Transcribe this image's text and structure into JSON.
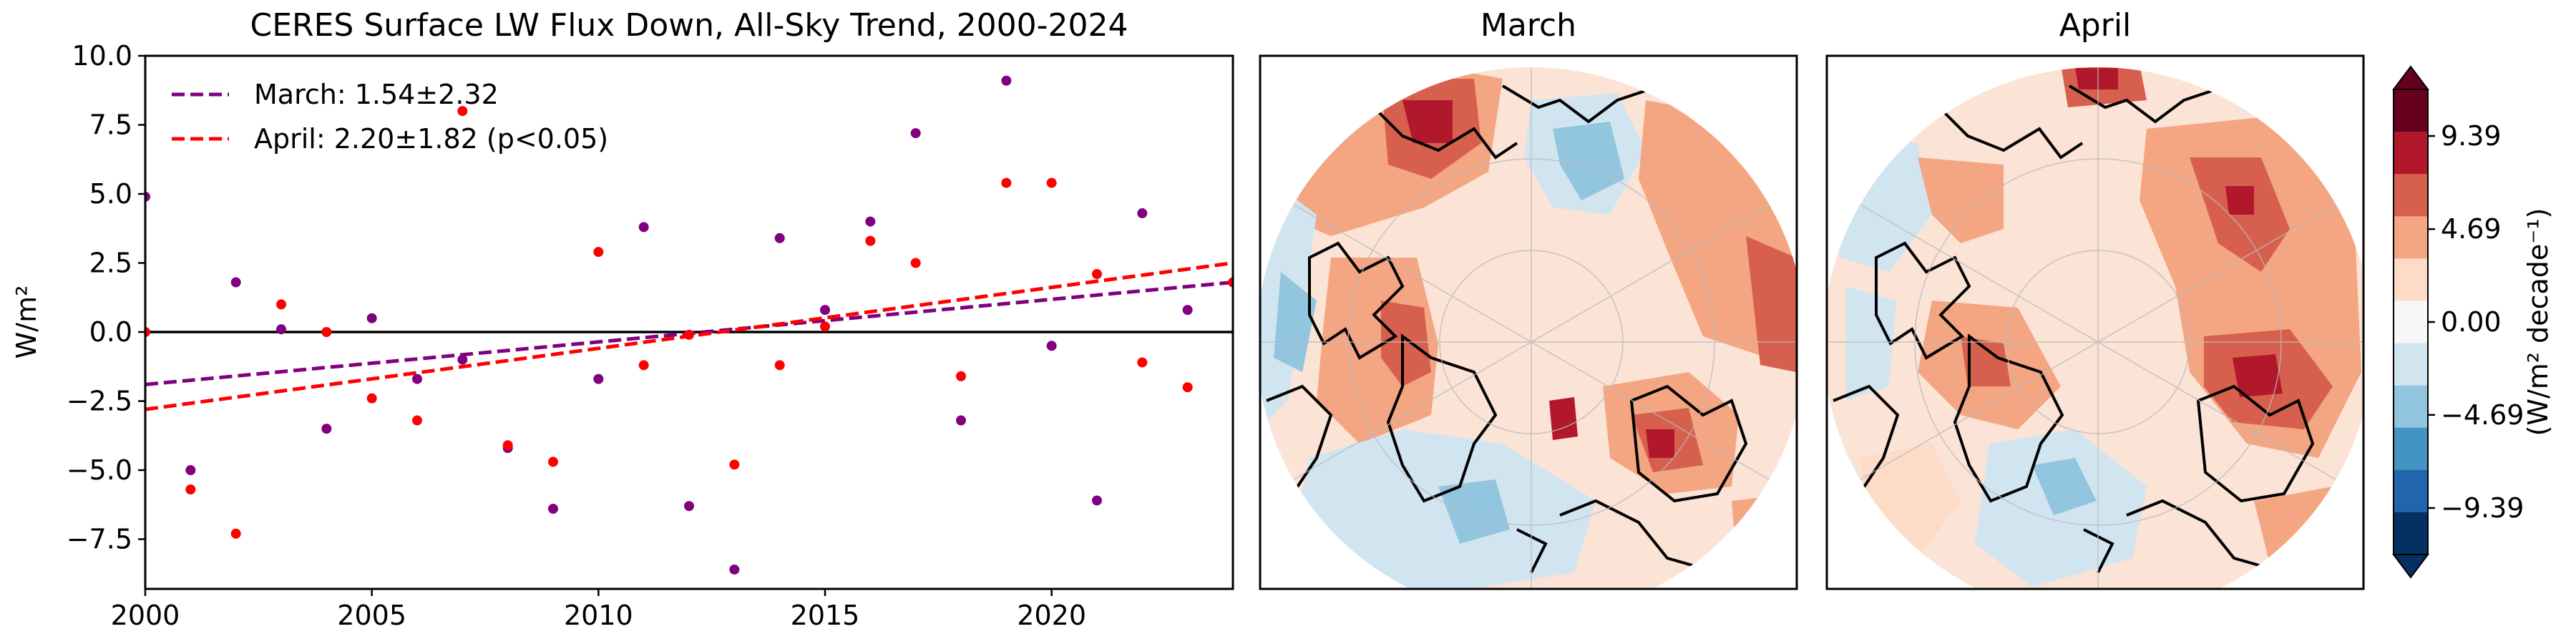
{
  "colors": {
    "march": "#800080",
    "april": "#ff0000",
    "zero_line": "#000000",
    "cmap": [
      "#053061",
      "#2166ac",
      "#4393c3",
      "#92c5de",
      "#d1e5f0",
      "#f7f7f7",
      "#fddbc7",
      "#f4a582",
      "#d6604d",
      "#b2182b",
      "#67001f"
    ]
  },
  "chart_data": [
    {
      "type": "scatter",
      "title": "CERES Surface LW Flux Down, All-Sky Trend, 2000-2024",
      "ylabel": "W/m²",
      "xlabel": "",
      "xlim": [
        2000,
        2024
      ],
      "ylim": [
        -9.3,
        10.0
      ],
      "xticks": [
        "2000",
        "2005",
        "2010",
        "2015",
        "2020"
      ],
      "yticks": [
        "10.0",
        "7.5",
        "5.0",
        "2.5",
        "0.0",
        "−2.5",
        "−5.0",
        "−7.5"
      ],
      "legend_position": "upper-left",
      "grid": false,
      "series": [
        {
          "name": "March: 1.54±2.32",
          "x": [
            2000,
            2001,
            2002,
            2003,
            2004,
            2005,
            2006,
            2007,
            2008,
            2009,
            2010,
            2011,
            2012,
            2013,
            2014,
            2015,
            2016,
            2017,
            2018,
            2019,
            2020,
            2021,
            2022,
            2023
          ],
          "y": [
            4.9,
            -5.0,
            1.8,
            0.1,
            -3.5,
            0.5,
            -1.7,
            -1.0,
            -4.2,
            -6.4,
            -1.7,
            3.8,
            -6.3,
            -8.6,
            3.4,
            0.8,
            4.0,
            7.2,
            -3.2,
            9.1,
            -0.5,
            -6.1,
            4.3,
            0.8
          ],
          "trend": {
            "slope_per_decade": 1.54,
            "uncertainty": 2.32,
            "y_start": -1.9,
            "y_end": 1.8
          }
        },
        {
          "name": "April: 2.20±1.82 (p<0.05)",
          "x": [
            2000,
            2001,
            2002,
            2003,
            2004,
            2005,
            2006,
            2007,
            2008,
            2009,
            2010,
            2011,
            2012,
            2013,
            2014,
            2015,
            2016,
            2017,
            2018,
            2019,
            2020,
            2021,
            2022,
            2023,
            2024
          ],
          "y": [
            0.0,
            -5.7,
            -7.3,
            1.0,
            0.0,
            -2.4,
            -3.2,
            8.0,
            -4.1,
            -4.7,
            2.9,
            -1.2,
            -0.1,
            -4.8,
            -1.2,
            0.2,
            3.3,
            2.5,
            -1.6,
            5.4,
            5.4,
            2.1,
            -1.1,
            -2.0,
            1.8
          ],
          "trend": {
            "slope_per_decade": 2.2,
            "uncertainty": 1.82,
            "y_start": -2.8,
            "y_end": 2.5
          }
        }
      ]
    },
    {
      "type": "heatmap",
      "title": "March",
      "projection": "north-polar-stereographic"
    },
    {
      "type": "heatmap",
      "title": "April",
      "projection": "north-polar-stereographic"
    },
    {
      "type": "colorbar",
      "label": "(W/m² decade⁻¹)",
      "ticks": [
        9.39,
        4.69,
        0.0,
        -4.69,
        -9.39
      ],
      "tick_labels": [
        "9.39",
        "4.69",
        "0.00",
        "−4.69",
        "−9.39"
      ],
      "range": [
        -11.74,
        11.74
      ],
      "extend": "both"
    }
  ]
}
